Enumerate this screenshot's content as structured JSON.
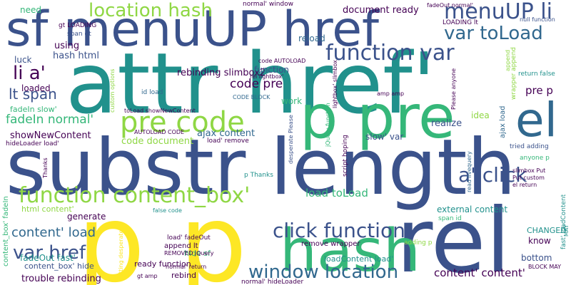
{
  "palette": {
    "purple": "#440154",
    "indigo": "#3b528b",
    "blue": "#31688e",
    "teal": "#21918c",
    "green": "#35b779",
    "lime": "#8fd744",
    "yellow": "#fde725"
  },
  "words": [
    {
      "text": "attr href'",
      "color": "#21918c",
      "weight": 1.0
    },
    {
      "text": "substr length",
      "color": "#3b528b",
      "weight": 0.95
    },
    {
      "text": "p p",
      "color": "#fde725",
      "weight": 0.9
    },
    {
      "text": "rel",
      "color": "#3b528b",
      "weight": 0.85
    },
    {
      "text": "sf menuUP href",
      "color": "#3b528b",
      "weight": 0.8
    },
    {
      "text": "hash",
      "color": "#35b779",
      "weight": 0.7
    },
    {
      "text": "p pre",
      "color": "#35b779",
      "weight": 0.7
    },
    {
      "text": "el",
      "color": "#31688e",
      "weight": 0.6
    },
    {
      "text": "pre code",
      "color": "#8fd744",
      "weight": 0.5
    },
    {
      "text": "function content_box'",
      "color": "#8fd744",
      "weight": 0.45
    },
    {
      "text": "click function",
      "color": "#3b528b",
      "weight": 0.42
    },
    {
      "text": "function var",
      "color": "#3b528b",
      "weight": 0.4
    },
    {
      "text": "menuUP li",
      "color": "#3b528b",
      "weight": 0.38
    },
    {
      "text": "location hash",
      "color": "#8fd744",
      "weight": 0.36
    },
    {
      "text": "a' click",
      "color": "#3b528b",
      "weight": 0.36
    },
    {
      "text": "var toLoad",
      "color": "#31688e",
      "weight": 0.34
    },
    {
      "text": "window location",
      "color": "#31688e",
      "weight": 0.34
    },
    {
      "text": "var href",
      "color": "#3b528b",
      "weight": 0.32
    },
    {
      "text": "li a'",
      "color": "#440154",
      "weight": 0.3
    },
    {
      "text": "code pre",
      "color": "#440154",
      "weight": 0.22
    },
    {
      "text": "pre p",
      "color": "#440154",
      "weight": 0.2
    },
    {
      "text": "lt span",
      "color": "#3b528b",
      "weight": 0.2
    },
    {
      "text": "content' load",
      "color": "#31688e",
      "weight": 0.19
    },
    {
      "text": "fadeIn normal'",
      "color": "#35b779",
      "weight": 0.18
    },
    {
      "text": "content' content'",
      "color": "#440154",
      "weight": 0.18
    },
    {
      "text": "load toLoad",
      "color": "#35b779",
      "weight": 0.17
    },
    {
      "text": "rebinding slimbox2",
      "color": "#440154",
      "weight": 0.15
    },
    {
      "text": "hash html",
      "color": "#3b528b",
      "weight": 0.15
    },
    {
      "text": "document ready",
      "color": "#440154",
      "weight": 0.14
    },
    {
      "text": "ajax content",
      "color": "#31688e",
      "weight": 0.14
    },
    {
      "text": "showNewContent",
      "color": "#440154",
      "weight": 0.14
    },
    {
      "text": "code document",
      "color": "#8fd744",
      "weight": 0.14
    },
    {
      "text": "loadContent load'",
      "color": "#21918c",
      "weight": 0.12
    },
    {
      "text": "trouble rebinding",
      "color": "#440154",
      "weight": 0.13
    },
    {
      "text": "fadeOut fast'",
      "color": "#21918c",
      "weight": 0.12
    },
    {
      "text": "need",
      "color": "#35b779",
      "weight": 0.12
    },
    {
      "text": "luck",
      "color": "#3b528b",
      "weight": 0.12
    },
    {
      "text": "using",
      "color": "#440154",
      "weight": 0.13
    },
    {
      "text": "loaded",
      "color": "#440154",
      "weight": 0.12
    },
    {
      "text": "function",
      "color": "#3b528b",
      "weight": 0.12
    },
    {
      "text": "fadeIn slow'",
      "color": "#35b779",
      "weight": 0.11
    },
    {
      "text": "reload",
      "color": "#31688e",
      "weight": 0.12
    },
    {
      "text": "work",
      "color": "#35b779",
      "weight": 0.12
    },
    {
      "text": "realize",
      "color": "#3b528b",
      "weight": 0.13
    },
    {
      "text": "idea",
      "color": "#8fd744",
      "weight": 0.12
    },
    {
      "text": "slow' var",
      "color": "#3b528b",
      "weight": 0.12
    },
    {
      "text": "external content",
      "color": "#21918c",
      "weight": 0.12
    },
    {
      "text": "know",
      "color": "#440154",
      "weight": 0.12
    },
    {
      "text": "CHANGED",
      "color": "#21918c",
      "weight": 0.11
    },
    {
      "text": "bottom",
      "color": "#3b528b",
      "weight": 0.12
    },
    {
      "text": "generate",
      "color": "#440154",
      "weight": 0.12
    },
    {
      "text": "html content'",
      "color": "#8fd744",
      "weight": 0.11
    },
    {
      "text": "content_box' hide",
      "color": "#3b528b",
      "weight": 0.11
    },
    {
      "text": "ready function",
      "color": "#440154",
      "weight": 0.11
    },
    {
      "text": "rebind",
      "color": "#440154",
      "weight": 0.11
    },
    {
      "text": "hide sf",
      "color": "#35b779",
      "weight": 0.11
    },
    {
      "text": "append lt",
      "color": "#440154",
      "weight": 0.1
    },
    {
      "text": "remove wrapper",
      "color": "#440154",
      "weight": 0.1
    },
    {
      "text": "span id",
      "color": "#35b779",
      "weight": 0.09
    },
    {
      "text": "fadeOut normal'",
      "color": "#440154",
      "weight": 0.09
    },
    {
      "text": "LOADING lt",
      "color": "#440154",
      "weight": 0.09
    },
    {
      "text": "null function",
      "color": "#3b528b",
      "weight": 0.08
    },
    {
      "text": "normal' window",
      "color": "#440154",
      "weight": 0.08
    },
    {
      "text": "code AUTOLOAD",
      "color": "#440154",
      "weight": 0.08
    },
    {
      "text": "rel lightbox'",
      "color": "#440154",
      "weight": 0.08
    },
    {
      "text": "CODE BLOCK",
      "color": "#31688e",
      "weight": 0.07
    },
    {
      "text": "id load",
      "color": "#31688e",
      "weight": 0.08
    },
    {
      "text": "toLoad showNewContent",
      "color": "#440154",
      "weight": 0.08
    },
    {
      "text": "AUTOLOAD CODE",
      "color": "#440154",
      "weight": 0.08
    },
    {
      "text": "load' remove",
      "color": "#440154",
      "weight": 0.08
    },
    {
      "text": "gt LOADING",
      "color": "#440154",
      "weight": 0.08
    },
    {
      "text": "span gt",
      "color": "#3b528b",
      "weight": 0.08
    },
    {
      "text": "amp amp",
      "color": "#440154",
      "weight": 0.07
    },
    {
      "text": "return false",
      "color": "#21918c",
      "weight": 0.08
    },
    {
      "text": "tried adding",
      "color": "#3b528b",
      "weight": 0.08
    },
    {
      "text": "anyone p",
      "color": "#35b779",
      "weight": 0.08
    },
    {
      "text": "slimbox Put",
      "color": "#440154",
      "weight": 0.08
    },
    {
      "text": "Put custom",
      "color": "#440154",
      "weight": 0.08
    },
    {
      "text": "el return",
      "color": "#440154",
      "weight": 0.08
    },
    {
      "text": "BLOCK MAY",
      "color": "#440154",
      "weight": 0.07
    },
    {
      "text": "hideLoader load'",
      "color": "#440154",
      "weight": 0.08
    },
    {
      "text": "p Thanks",
      "color": "#21918c",
      "weight": 0.08
    },
    {
      "text": "false code",
      "color": "#21918c",
      "weight": 0.07
    },
    {
      "text": "load' fadeOut",
      "color": "#440154",
      "weight": 0.08
    },
    {
      "text": "REMOVED jQuery",
      "color": "#440154",
      "weight": 0.08
    },
    {
      "text": "normal' return",
      "color": "#440154",
      "weight": 0.08
    },
    {
      "text": "normal' hideLoader",
      "color": "#440154",
      "weight": 0.08
    },
    {
      "text": "gt amp",
      "color": "#440154",
      "weight": 0.07
    },
    {
      "text": "adding p",
      "color": "#8fd744",
      "weight": 0.07
    },
    {
      "text": "custom options",
      "color": "#8fd744",
      "weight": 0.07
    },
    {
      "text": "lightbox' slimbox",
      "color": "#440154",
      "weight": 0.07
    },
    {
      "text": "Please anyone",
      "color": "#440154",
      "weight": 0.07
    },
    {
      "text": "wrapper append",
      "color": "#8fd744",
      "weight": 0.07
    },
    {
      "text": "jQuery function",
      "color": "#35b779",
      "weight": 0.07
    },
    {
      "text": "desperate Please",
      "color": "#3b528b",
      "weight": 0.07
    },
    {
      "text": "script hoping",
      "color": "#440154",
      "weight": 0.07
    },
    {
      "text": "read livequery",
      "color": "#31688e",
      "weight": 0.07
    },
    {
      "text": "ajax load",
      "color": "#31688e",
      "weight": 0.09
    },
    {
      "text": "content_box' fadeIn",
      "color": "#35b779",
      "weight": 0.09
    },
    {
      "text": "getting desperate",
      "color": "#fde725",
      "weight": 0.07
    },
    {
      "text": "Thanks",
      "color": "#440154",
      "weight": 0.07
    },
    {
      "text": "fast' loadContent",
      "color": "#21918c",
      "weight": 0.08
    },
    {
      "text": "append",
      "color": "#8fd744",
      "weight": 0.07
    },
    {
      "text": "MAY",
      "color": "#21918c",
      "weight": 0.07
    }
  ]
}
